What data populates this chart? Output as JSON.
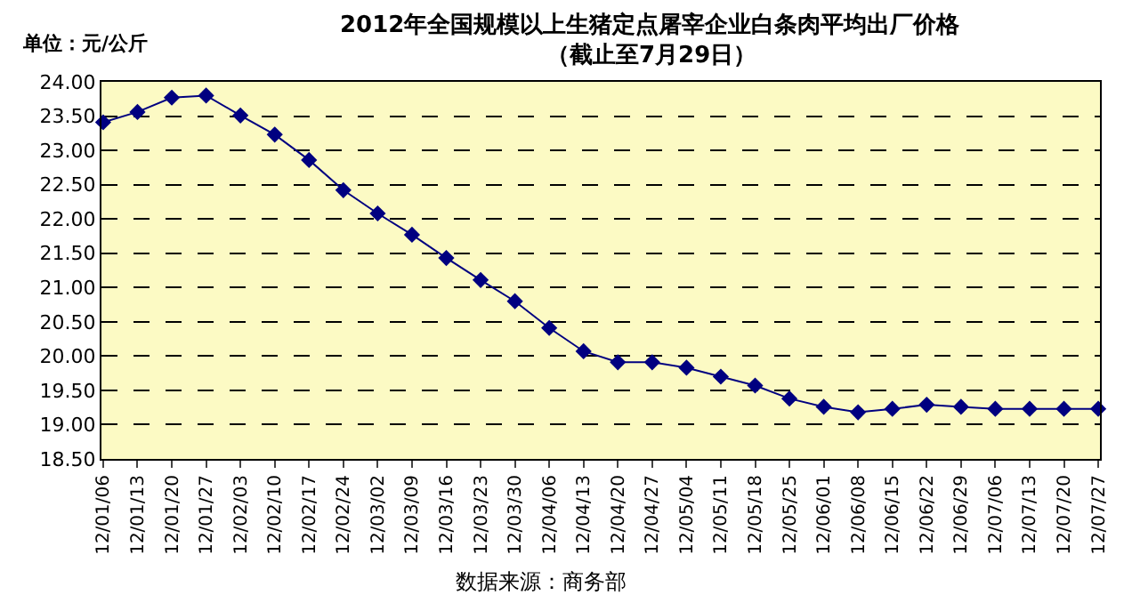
{
  "chart_data": {
    "type": "line",
    "title": "2012年全国规模以上生猪定点屠宰企业白条肉平均出厂价格",
    "subtitle": "（截止至7月29日）",
    "ylabel": "单位：元/公斤",
    "annotations": [
      "数据来源：商务部"
    ],
    "categories": [
      "12/01/06",
      "12/01/13",
      "12/01/20",
      "12/01/27",
      "12/02/03",
      "12/02/10",
      "12/02/17",
      "12/02/24",
      "12/03/02",
      "12/03/09",
      "12/03/16",
      "12/03/23",
      "12/03/30",
      "12/04/06",
      "12/04/13",
      "12/04/20",
      "12/04/27",
      "12/05/04",
      "12/05/11",
      "12/05/18",
      "12/05/25",
      "12/06/01",
      "12/06/08",
      "12/06/15",
      "12/06/22",
      "12/06/29",
      "12/07/06",
      "12/07/13",
      "12/07/20",
      "12/07/27"
    ],
    "series": [
      {
        "color": "#000080",
        "values": [
          23.41,
          23.56,
          23.77,
          23.8,
          23.51,
          23.23,
          22.86,
          22.42,
          22.08,
          21.77,
          21.43,
          21.11,
          20.8,
          20.41,
          20.07,
          19.91,
          19.91,
          19.83,
          19.7,
          19.57,
          19.38,
          19.26,
          19.18,
          19.23,
          19.29,
          19.26,
          19.23,
          19.23,
          19.23,
          19.23
        ]
      }
    ],
    "ylim": [
      18.5,
      24
    ],
    "yticks": [
      {
        "value": 18.5,
        "label": "18.50"
      },
      {
        "value": 19,
        "label": "19.00"
      },
      {
        "value": 19.5,
        "label": "19.50"
      },
      {
        "value": 20,
        "label": "20.00"
      },
      {
        "value": 20.5,
        "label": "20.50"
      },
      {
        "value": 21,
        "label": "21.00"
      },
      {
        "value": 21.5,
        "label": "21.50"
      },
      {
        "value": 22,
        "label": "22.00"
      },
      {
        "value": 22.5,
        "label": "22.50"
      },
      {
        "value": 23,
        "label": "23.00"
      },
      {
        "value": 23.5,
        "label": "23.50"
      },
      {
        "value": 24,
        "label": "24.00"
      }
    ],
    "grid": "y",
    "marker": "diamond",
    "line_style": "solid"
  }
}
